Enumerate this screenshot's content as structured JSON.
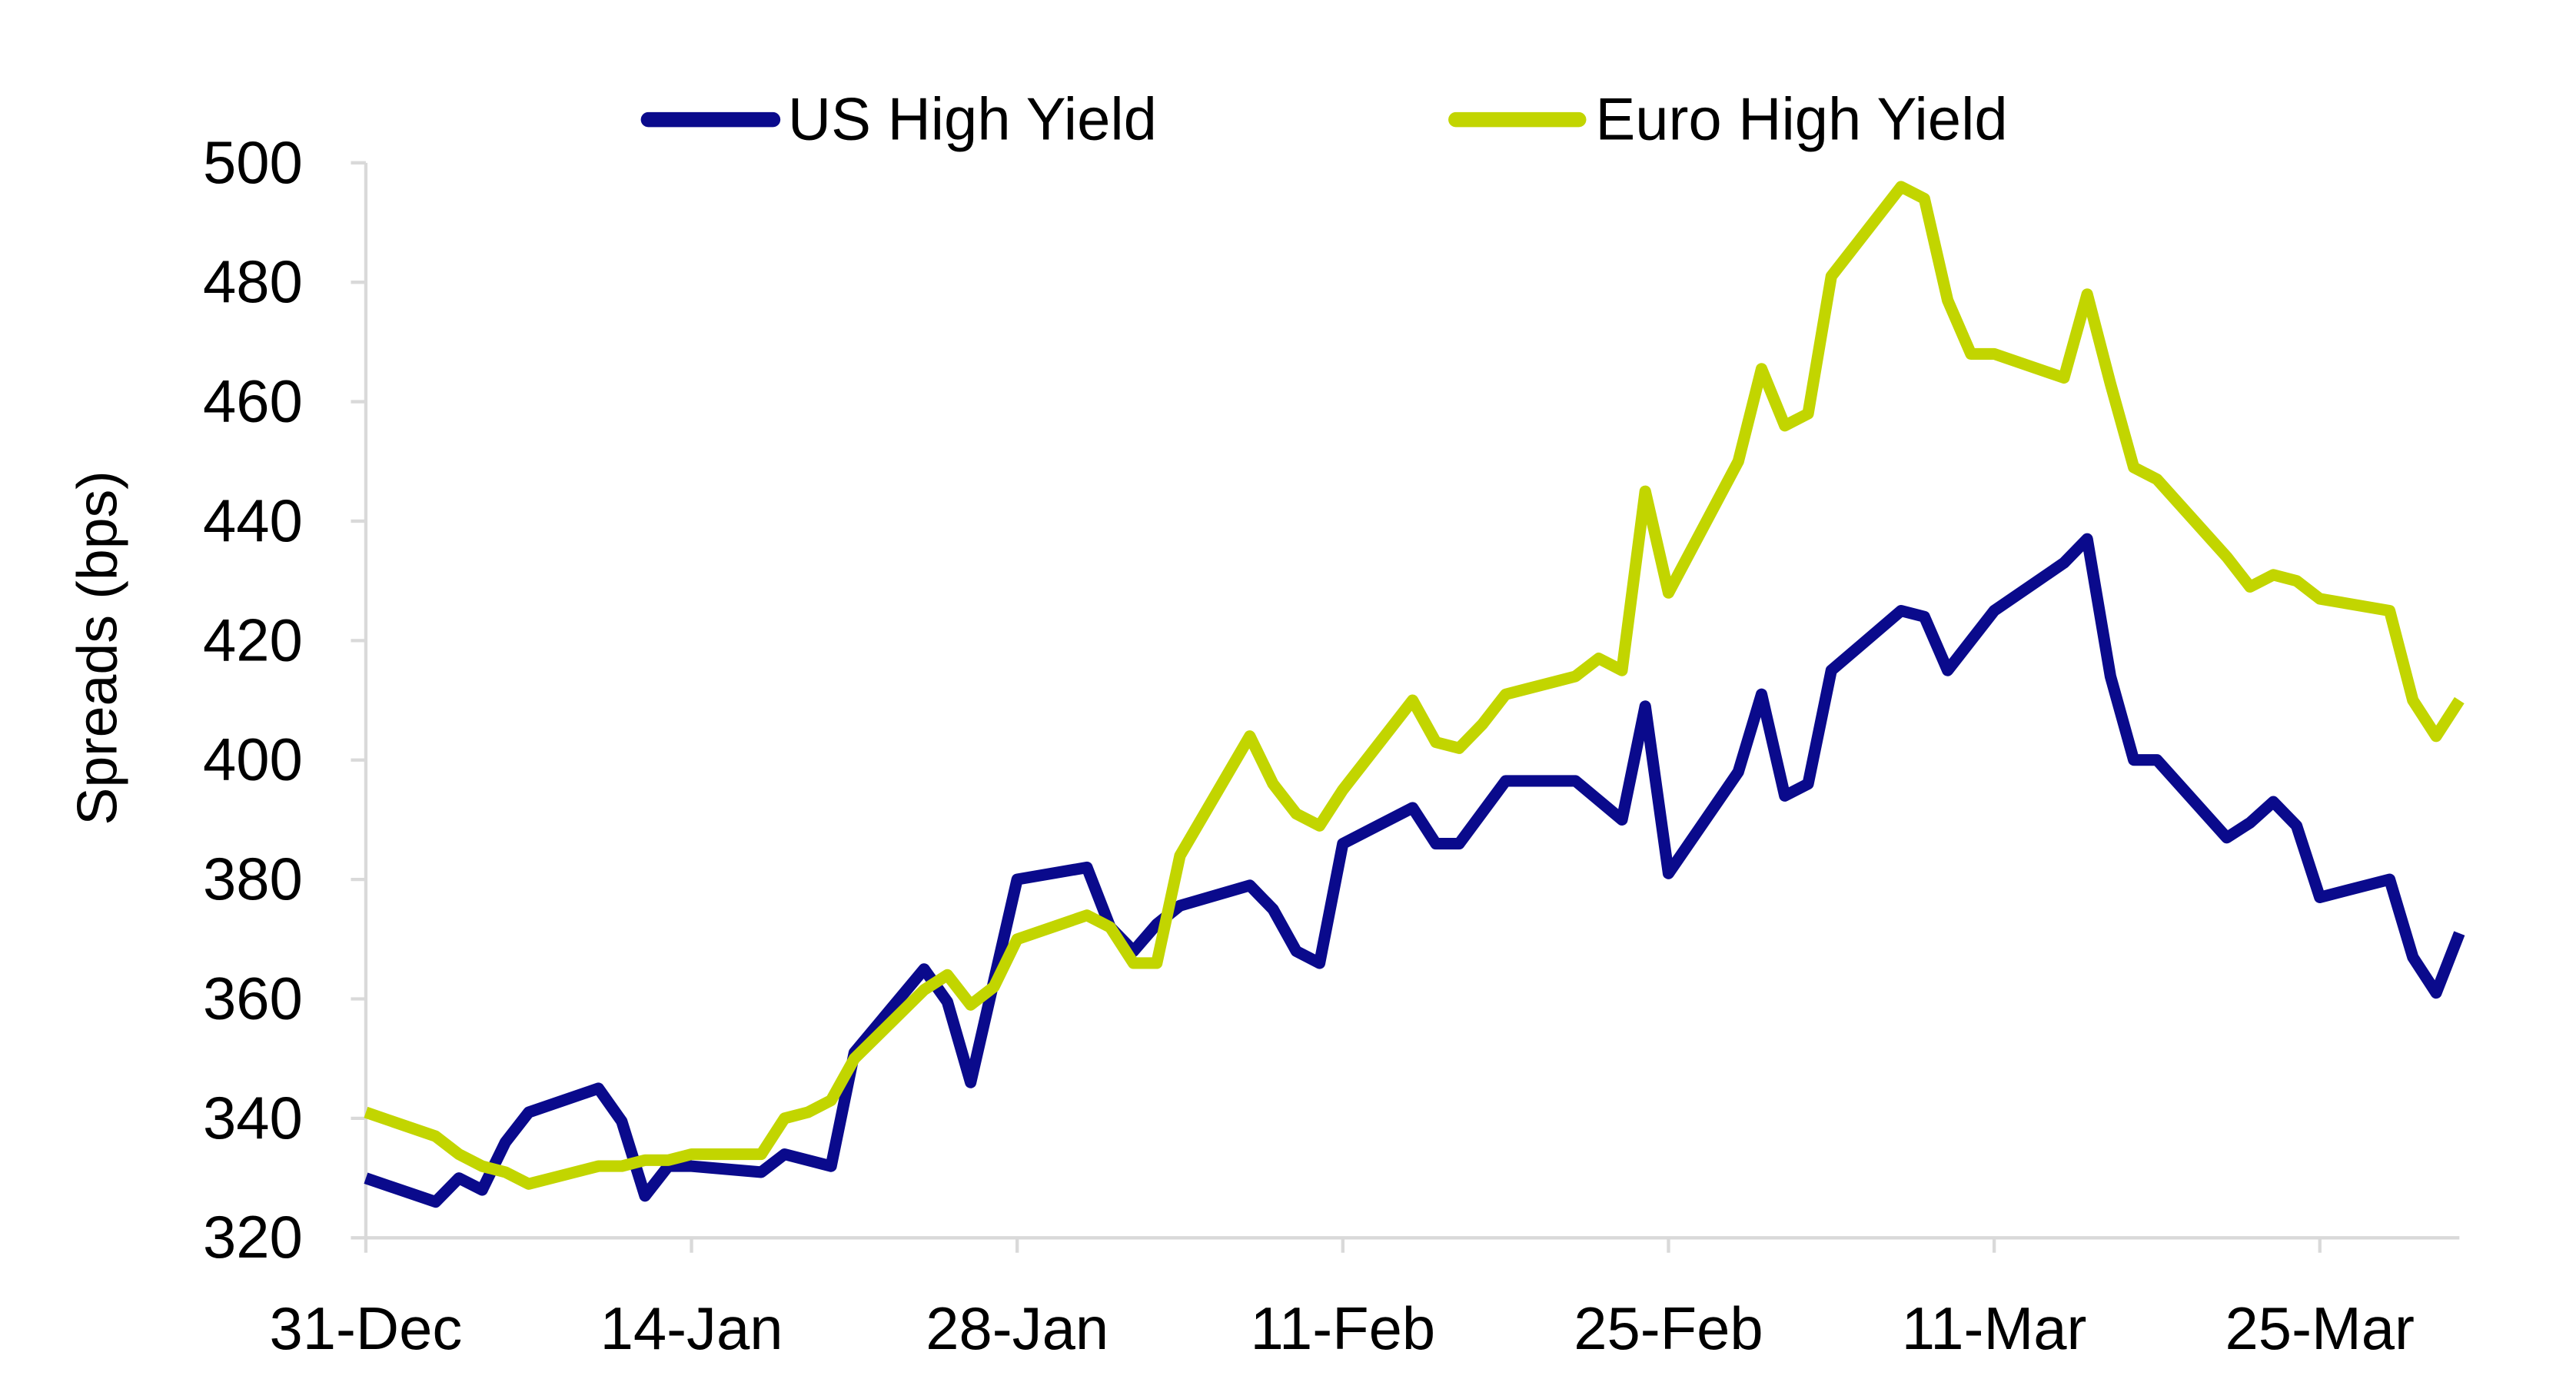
{
  "chart_data": {
    "type": "line",
    "title": "",
    "xlabel": "",
    "ylabel": "Spreads (bps)",
    "ylim": [
      320,
      500
    ],
    "yticks": [
      "320",
      "340",
      "360",
      "380",
      "400",
      "420",
      "440",
      "460",
      "480",
      "500"
    ],
    "xlim": [
      "31-Dec",
      "31-Mar"
    ],
    "xticks": [
      "31-Dec",
      "14-Jan",
      "28-Jan",
      "11-Feb",
      "25-Feb",
      "11-Mar",
      "25-Mar"
    ],
    "grid": false,
    "legend": "top",
    "series": [
      {
        "name": "US High Yield",
        "color": "#0a0a8c",
        "x": [
          "31-Dec",
          "3-Jan",
          "4-Jan",
          "5-Jan",
          "6-Jan",
          "7-Jan",
          "10-Jan",
          "11-Jan",
          "12-Jan",
          "13-Jan",
          "14-Jan",
          "17-Jan",
          "18-Jan",
          "20-Jan",
          "21-Jan",
          "24-Jan",
          "25-Jan",
          "26-Jan",
          "28-Jan",
          "31-Jan",
          "1-Feb",
          "2-Feb",
          "3-Feb",
          "4-Feb",
          "7-Feb",
          "8-Feb",
          "9-Feb",
          "10-Feb",
          "11-Feb",
          "14-Feb",
          "15-Feb",
          "16-Feb",
          "18-Feb",
          "21-Feb",
          "23-Feb",
          "24-Feb",
          "25-Feb",
          "28-Feb",
          "1-Mar",
          "2-Mar",
          "3-Mar",
          "4-Mar",
          "7-Mar",
          "8-Mar",
          "9-Mar",
          "11-Mar",
          "14-Mar",
          "15-Mar",
          "16-Mar",
          "17-Mar",
          "18-Mar",
          "21-Mar",
          "22-Mar",
          "23-Mar",
          "24-Mar",
          "25-Mar",
          "28-Mar",
          "29-Mar",
          "30-Mar",
          "31-Mar"
        ],
        "values": [
          330,
          326,
          330,
          328,
          336,
          341,
          345,
          339.5,
          327,
          332,
          332,
          331,
          334,
          332,
          351,
          365,
          359.5,
          346,
          380,
          382,
          372,
          368,
          372.5,
          375.6,
          379,
          375,
          368,
          366,
          386,
          392,
          386,
          386,
          396.5,
          396.5,
          390,
          409,
          381,
          398,
          411,
          394,
          396,
          415,
          425,
          424,
          415,
          425,
          433,
          437,
          414,
          400,
          400,
          387,
          389.5,
          393,
          389,
          377,
          380,
          367,
          361,
          371
        ]
      },
      {
        "name": "Euro High Yield",
        "color": "#c2d500",
        "x": [
          "31-Dec",
          "3-Jan",
          "4-Jan",
          "5-Jan",
          "6-Jan",
          "7-Jan",
          "10-Jan",
          "11-Jan",
          "12-Jan",
          "13-Jan",
          "14-Jan",
          "17-Jan",
          "18-Jan",
          "19-Jan",
          "20-Jan",
          "21-Jan",
          "24-Jan",
          "25-Jan",
          "26-Jan",
          "27-Jan",
          "28-Jan",
          "31-Jan",
          "1-Feb",
          "2-Feb",
          "3-Feb",
          "4-Feb",
          "7-Feb",
          "8-Feb",
          "9-Feb",
          "10-Feb",
          "11-Feb",
          "14-Feb",
          "15-Feb",
          "16-Feb",
          "17-Feb",
          "18-Feb",
          "21-Feb",
          "22-Feb",
          "23-Feb",
          "24-Feb",
          "25-Feb",
          "28-Feb",
          "1-Mar",
          "2-Mar",
          "3-Mar",
          "4-Mar",
          "7-Mar",
          "8-Mar",
          "9-Mar",
          "10-Mar",
          "11-Mar",
          "14-Mar",
          "15-Mar",
          "16-Mar",
          "17-Mar",
          "18-Mar",
          "21-Mar",
          "22-Mar",
          "23-Mar",
          "24-Mar",
          "25-Mar",
          "28-Mar",
          "29-Mar",
          "30-Mar",
          "31-Mar"
        ],
        "values": [
          341,
          337,
          334,
          332,
          331,
          329,
          332,
          332,
          333,
          333,
          334,
          334,
          340,
          341,
          343,
          350,
          361.5,
          364,
          359,
          362,
          370,
          374,
          372,
          366,
          366,
          384,
          404,
          396,
          391,
          389,
          395,
          410,
          403,
          402,
          406,
          411,
          414,
          417,
          415,
          445,
          428,
          450,
          465.5,
          456,
          458,
          481,
          496,
          494,
          477,
          468,
          468,
          464,
          478,
          463,
          449,
          447,
          434,
          429,
          431,
          430,
          427,
          425,
          410,
          404,
          410
        ]
      }
    ]
  }
}
